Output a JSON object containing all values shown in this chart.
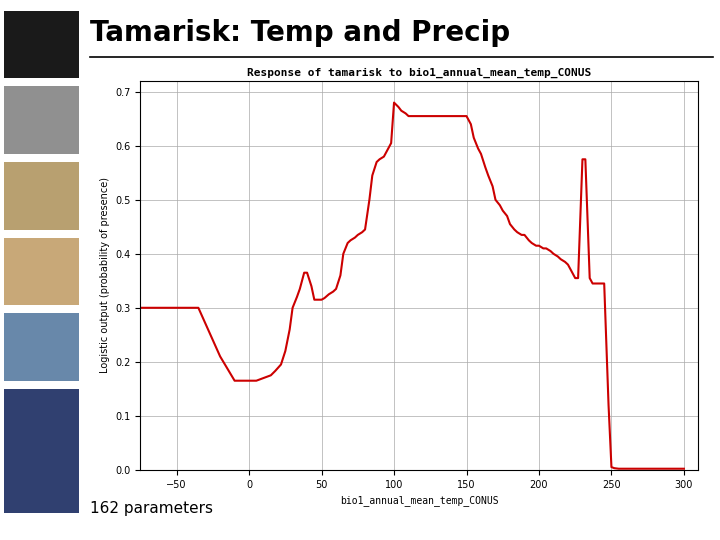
{
  "title": "Tamarisk: Temp and Precip",
  "chart_title": "Response of tamarisk to bio1_annual_mean_temp_CONUS",
  "xlabel": "bio1_annual_mean_temp_CONUS",
  "ylabel": "Logistic output (probability of presence)",
  "xlim": [
    -75,
    310
  ],
  "ylim": [
    0.0,
    0.72
  ],
  "xticks": [
    -50,
    0,
    50,
    100,
    150,
    200,
    250,
    300
  ],
  "yticks": [
    0.0,
    0.1,
    0.2,
    0.3,
    0.4,
    0.5,
    0.6,
    0.7
  ],
  "line_color": "#cc0000",
  "line_width": 1.5,
  "subtitle": "162 parameters",
  "background_color": "#ffffff",
  "title_fontsize": 20,
  "subtitle_fontsize": 11,
  "chart_title_fontsize": 8,
  "axis_label_fontsize": 7,
  "tick_fontsize": 7,
  "x": [
    -75,
    -65,
    -55,
    -50,
    -45,
    -35,
    -20,
    -10,
    0,
    5,
    10,
    15,
    18,
    22,
    25,
    28,
    30,
    33,
    35,
    38,
    40,
    43,
    45,
    48,
    50,
    52,
    55,
    58,
    60,
    63,
    65,
    68,
    70,
    73,
    75,
    78,
    80,
    83,
    85,
    88,
    90,
    93,
    95,
    98,
    100,
    103,
    105,
    108,
    110,
    115,
    120,
    125,
    130,
    135,
    140,
    145,
    148,
    150,
    153,
    155,
    158,
    160,
    163,
    165,
    168,
    170,
    173,
    175,
    178,
    180,
    183,
    185,
    188,
    190,
    193,
    195,
    198,
    200,
    203,
    205,
    208,
    210,
    213,
    215,
    218,
    220,
    222,
    225,
    227,
    230,
    232,
    235,
    237,
    240,
    242,
    245,
    248,
    250,
    252,
    255,
    260,
    270,
    280,
    290,
    300
  ],
  "y": [
    0.3,
    0.3,
    0.3,
    0.3,
    0.3,
    0.3,
    0.21,
    0.165,
    0.165,
    0.165,
    0.17,
    0.175,
    0.183,
    0.195,
    0.22,
    0.26,
    0.3,
    0.32,
    0.335,
    0.365,
    0.365,
    0.34,
    0.315,
    0.315,
    0.315,
    0.318,
    0.325,
    0.33,
    0.335,
    0.36,
    0.4,
    0.42,
    0.425,
    0.43,
    0.435,
    0.44,
    0.445,
    0.5,
    0.545,
    0.57,
    0.575,
    0.58,
    0.59,
    0.605,
    0.68,
    0.672,
    0.665,
    0.66,
    0.655,
    0.655,
    0.655,
    0.655,
    0.655,
    0.655,
    0.655,
    0.655,
    0.655,
    0.655,
    0.64,
    0.615,
    0.595,
    0.585,
    0.56,
    0.545,
    0.525,
    0.5,
    0.49,
    0.48,
    0.47,
    0.455,
    0.445,
    0.44,
    0.435,
    0.435,
    0.425,
    0.42,
    0.415,
    0.415,
    0.41,
    0.41,
    0.405,
    0.4,
    0.395,
    0.39,
    0.385,
    0.38,
    0.37,
    0.355,
    0.355,
    0.575,
    0.575,
    0.355,
    0.345,
    0.345,
    0.345,
    0.345,
    0.12,
    0.005,
    0.003,
    0.002,
    0.002,
    0.002,
    0.002,
    0.002,
    0.002
  ]
}
